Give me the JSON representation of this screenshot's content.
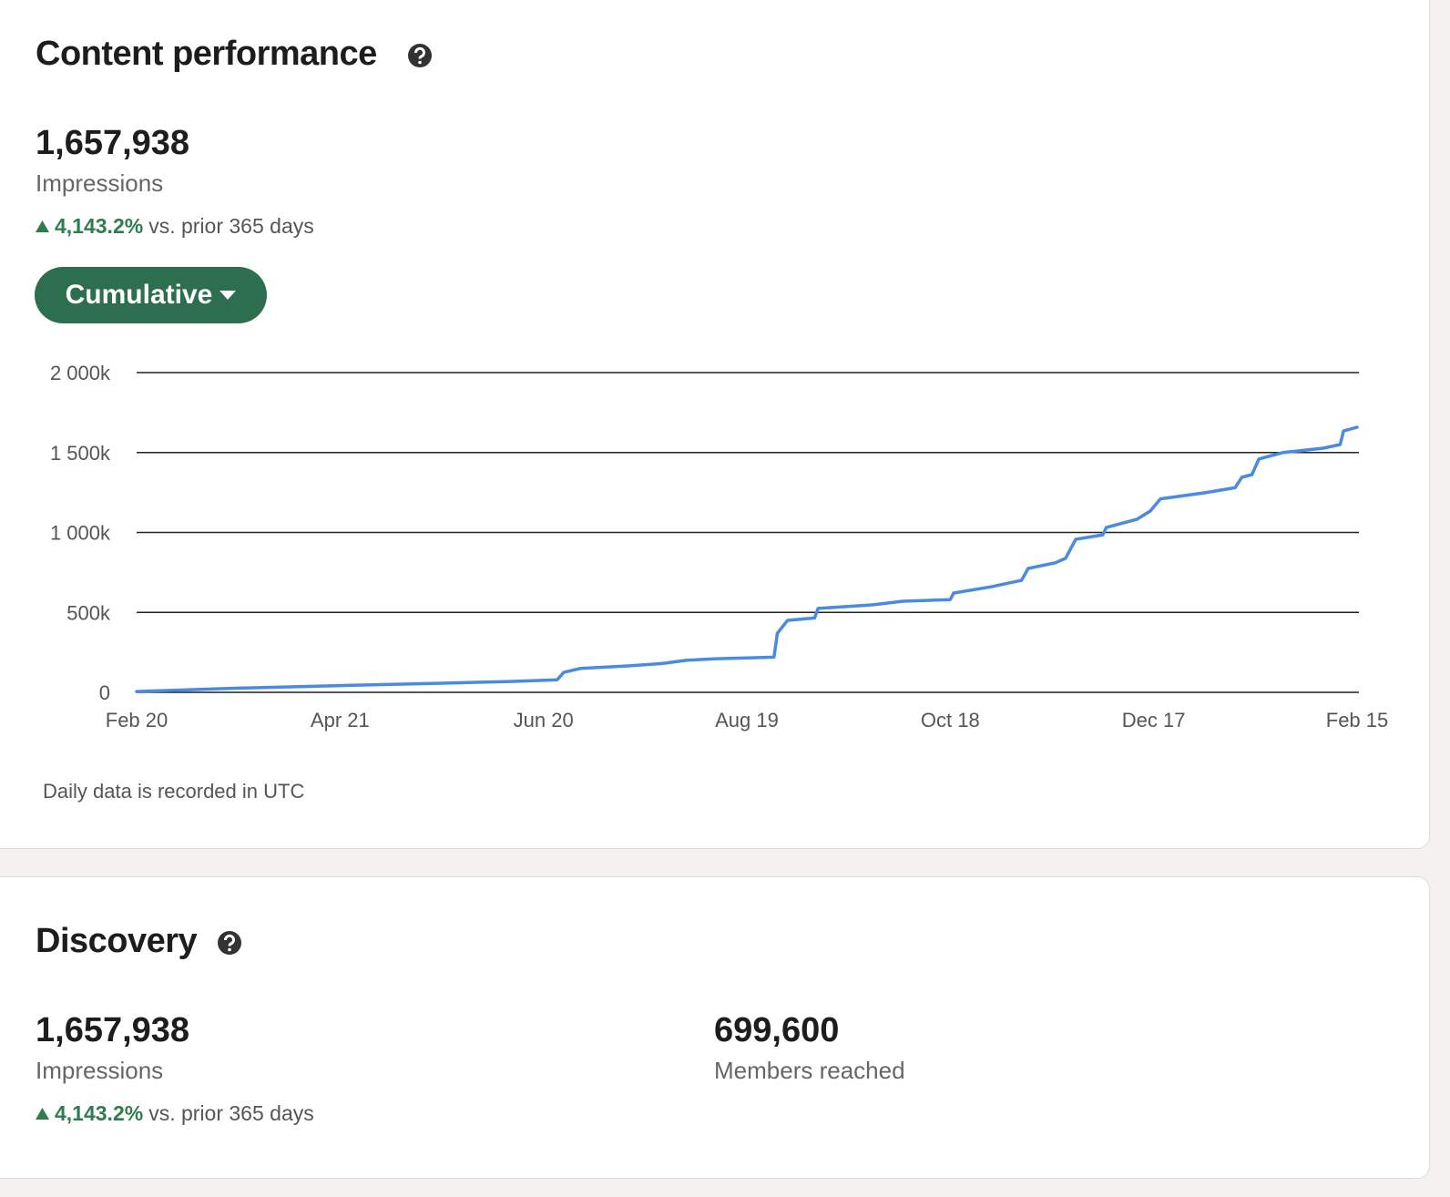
{
  "content_performance": {
    "title": "Content performance",
    "total": "1,657,938",
    "metric": "Impressions",
    "change": "4,143.2%",
    "change_note": "vs. prior 365 days",
    "mode_button": "Cumulative",
    "footnote": "Daily data is recorded in UTC"
  },
  "chart_data": {
    "type": "line",
    "x": [
      "Feb 20",
      "Mar 20",
      "Apr 21",
      "May 21",
      "Jun 10",
      "Jun 24",
      "Jun 26",
      "Jul 1",
      "Jul 15",
      "Jul 25",
      "Aug 1",
      "Aug 10",
      "Aug 19",
      "Aug 27",
      "Aug 28",
      "Aug 31",
      "Sep 8",
      "Sep 9",
      "Sep 25",
      "Oct 4",
      "Oct 18",
      "Oct 19",
      "Oct 30",
      "Nov 8",
      "Nov 10",
      "Nov 18",
      "Nov 21",
      "Nov 24",
      "Dec 2",
      "Dec 3",
      "Dec 12",
      "Dec 16",
      "Dec 19",
      "Jan 1",
      "Jan 10",
      "Jan 12",
      "Jan 15",
      "Jan 17",
      "Jan 24",
      "Feb 5",
      "Feb 10",
      "Feb 11",
      "Feb 15"
    ],
    "values": [
      5,
      25,
      42,
      57,
      68,
      78,
      125,
      150,
      165,
      180,
      200,
      210,
      215,
      220,
      370,
      450,
      465,
      525,
      547,
      570,
      580,
      621,
      660,
      700,
      775,
      810,
      838,
      957,
      985,
      1031,
      1082,
      1134,
      1210,
      1248,
      1280,
      1345,
      1362,
      1459,
      1499,
      1527,
      1550,
      1635,
      1658
    ],
    "color": "#4a8ae0",
    "xlim": [
      "Feb 20",
      "Feb 15"
    ],
    "xticks": [
      "Feb 20",
      "Apr 21",
      "Jun 20",
      "Aug 19",
      "Oct 18",
      "Dec 17",
      "Feb 15"
    ],
    "ylim": [
      0,
      2000
    ],
    "yticks": [
      0,
      {
        "value": 500,
        "label": "500k"
      },
      {
        "value": 1000,
        "label": "1 000k"
      },
      {
        "value": 1500,
        "label": "1 500k"
      },
      {
        "value": 2000,
        "label": "2 000k"
      }
    ],
    "grid": true
  },
  "discovery": {
    "title": "Discovery",
    "impressions": {
      "total": "1,657,938",
      "metric": "Impressions",
      "change": "4,143.2%",
      "change_note": "vs. prior 365 days"
    },
    "members": {
      "total": "699,600",
      "metric": "Members reached"
    }
  }
}
